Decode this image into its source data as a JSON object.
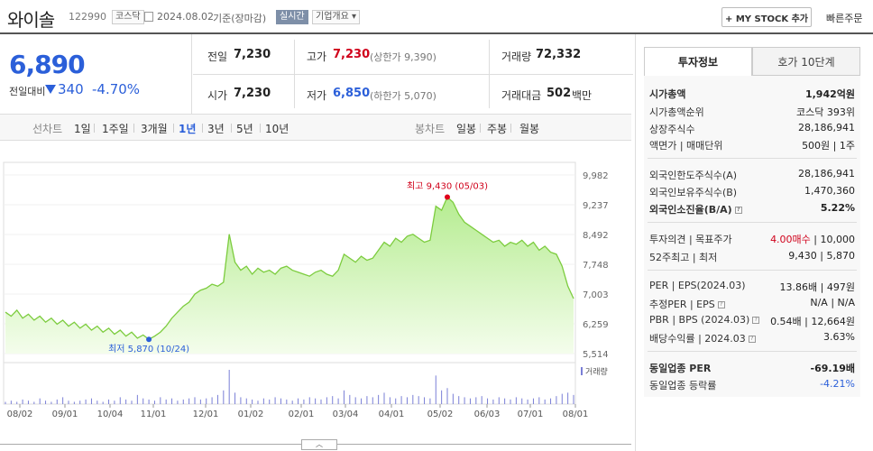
{
  "header": {
    "name": "와이솔",
    "code": "122990",
    "market": "코스닥",
    "date": "2024.08.02",
    "basis": "기준(장마감)",
    "realtime": "실시간",
    "corp_info": "기업개요 ▾",
    "mystock": "+ MY STOCK 추가",
    "fast_order": "빠른주문"
  },
  "price": {
    "current": "6,890",
    "change_label": "전일대비",
    "change": "340",
    "change_pct": "-4.70%"
  },
  "stats": {
    "prev_label": "전일",
    "prev": "7,230",
    "high_label": "고가",
    "high": "7,230",
    "upper_limit": "(상한가 9,390)",
    "volume_label": "거래량",
    "volume": "72,332",
    "open_label": "시가",
    "open": "7,230",
    "low_label": "저가",
    "low": "6,850",
    "lower_limit": "(하한가 5,070)",
    "amount_label": "거래대금",
    "amount": "502",
    "amount_unit": "백만"
  },
  "periods": {
    "line_label": "선차트",
    "items": [
      "1일",
      "1주일",
      "3개월",
      "1년",
      "3년",
      "5년",
      "10년"
    ],
    "candle_label": "봉차트",
    "candles": [
      "일봉",
      "주봉",
      "월봉"
    ]
  },
  "chart_data": {
    "type": "area",
    "y_ticks": [
      "9,982",
      "9,237",
      "8,492",
      "7,748",
      "7,003",
      "6,259",
      "5,514"
    ],
    "ylim": [
      5514,
      9982
    ],
    "x_ticks": [
      "08/02",
      "09/01",
      "10/04",
      "11/01",
      "12/01",
      "01/02",
      "02/01",
      "03/04",
      "04/01",
      "05/02",
      "06/03",
      "07/01",
      "08/01"
    ],
    "high_annotation": "최고 9,430 (05/03)",
    "low_annotation": "최저 5,870 (10/24)",
    "volume_label": "거래량",
    "values": [
      6550,
      6450,
      6600,
      6400,
      6500,
      6350,
      6450,
      6300,
      6400,
      6250,
      6350,
      6200,
      6300,
      6150,
      6250,
      6100,
      6200,
      6050,
      6150,
      6000,
      6100,
      5950,
      6050,
      5900,
      5980,
      5870,
      5950,
      6050,
      6200,
      6400,
      6550,
      6700,
      6800,
      7000,
      7100,
      7150,
      7250,
      7200,
      7300,
      8500,
      7800,
      7600,
      7700,
      7500,
      7650,
      7550,
      7600,
      7500,
      7650,
      7700,
      7600,
      7550,
      7500,
      7450,
      7550,
      7600,
      7500,
      7450,
      7600,
      8000,
      7900,
      7800,
      7950,
      7850,
      7900,
      8100,
      8300,
      8200,
      8400,
      8300,
      8450,
      8500,
      8400,
      8300,
      8350,
      9200,
      9100,
      9430,
      9300,
      9000,
      8800,
      8700,
      8600,
      8500,
      8400,
      8300,
      8350,
      8200,
      8300,
      8250,
      8350,
      8200,
      8300,
      8100,
      8200,
      8050,
      8000,
      7700,
      7200,
      6890
    ],
    "volumes": [
      2,
      3,
      2,
      4,
      3,
      2,
      5,
      3,
      2,
      4,
      6,
      3,
      2,
      3,
      4,
      5,
      3,
      2,
      4,
      3,
      6,
      4,
      3,
      8,
      5,
      4,
      3,
      6,
      4,
      5,
      3,
      4,
      5,
      6,
      4,
      5,
      6,
      8,
      12,
      30,
      10,
      6,
      5,
      4,
      3,
      5,
      4,
      6,
      5,
      4,
      3,
      5,
      4,
      6,
      5,
      4,
      6,
      7,
      5,
      12,
      8,
      6,
      5,
      7,
      6,
      8,
      10,
      6,
      5,
      7,
      6,
      8,
      7,
      6,
      5,
      25,
      12,
      14,
      9,
      7,
      6,
      5,
      6,
      7,
      5,
      4,
      6,
      5,
      4,
      6,
      5,
      4,
      5,
      6,
      4,
      5,
      7,
      9,
      10,
      8
    ]
  },
  "info_panel": {
    "tab1": "투자정보",
    "tab2": "호가 10단계",
    "rows1": [
      {
        "k": "시가총액",
        "v": "1,942억원"
      },
      {
        "k": "시가총액순위",
        "v": "코스닥 393위"
      },
      {
        "k": "상장주식수",
        "v": "28,186,941"
      },
      {
        "k": "액면가 | 매매단위",
        "v": "500원 | 1주"
      }
    ],
    "rows2": [
      {
        "k": "외국인한도주식수(A)",
        "v": "28,186,941"
      },
      {
        "k": "외국인보유주식수(B)",
        "v": "1,470,360"
      },
      {
        "k": "외국인소진율(B/A)",
        "v": "5.22%"
      }
    ],
    "rows3": [
      {
        "k": "투자의견 | 목표주가",
        "v1": "4.00매수",
        "v2": "10,000"
      },
      {
        "k": "52주최고 | 최저",
        "v1": "9,430",
        "v2": "5,870"
      }
    ],
    "rows4": [
      {
        "k": "PER | EPS(2024.03)",
        "v1": "13.86배",
        "v2": "497원"
      },
      {
        "k": "추정PER | EPS",
        "v1": "N/A",
        "v2": "N/A"
      },
      {
        "k": "PBR | BPS (2024.03)",
        "v1": "0.54배",
        "v2": "12,664원"
      },
      {
        "k": "배당수익률 | 2024.03",
        "v1": "",
        "v2": "3.63%"
      }
    ],
    "rows5": [
      {
        "k": "동일업종 PER",
        "v": "-69.19배"
      },
      {
        "k": "동일업종 등락률",
        "v": "-4.21%"
      }
    ]
  }
}
